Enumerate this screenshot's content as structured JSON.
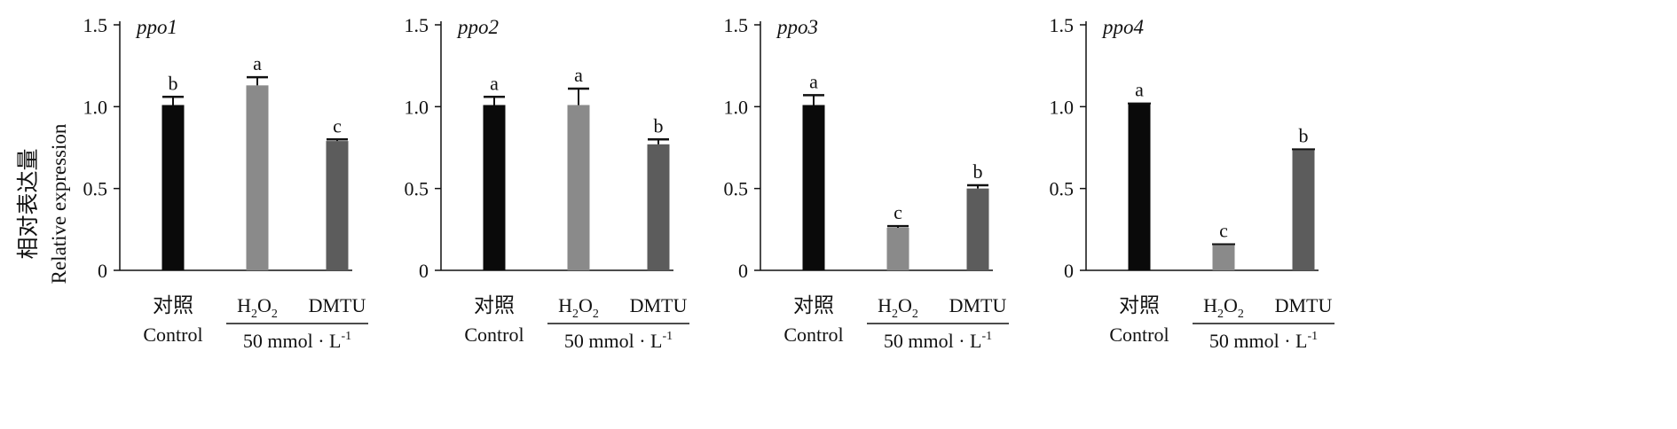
{
  "figure": {
    "ylabel_cn": "相对表达量",
    "ylabel_en": "Relative expression",
    "group_bracket_label": "50 mmol · L",
    "group_bracket_sup": "-1"
  },
  "chart_data": [
    {
      "type": "bar",
      "title": "ppo1",
      "ylim": [
        0,
        1.5
      ],
      "yticks": [
        "0",
        "0.5",
        "1.0",
        "1.5"
      ],
      "categories": [
        {
          "cn": "对照",
          "en": "Control"
        },
        {
          "main": "H",
          "sub1": "2",
          "mid": "O",
          "sub2": "2"
        },
        {
          "main": "DMTU"
        }
      ],
      "values": [
        1.01,
        1.13,
        0.79
      ],
      "errors": [
        0.05,
        0.05,
        0.01
      ],
      "letters": [
        "b",
        "a",
        "c"
      ],
      "colors": [
        "#0a0a0a",
        "#8a8a8a",
        "#5c5c5c"
      ]
    },
    {
      "type": "bar",
      "title": "ppo2",
      "ylim": [
        0,
        1.5
      ],
      "yticks": [
        "0",
        "0.5",
        "1.0",
        "1.5"
      ],
      "categories": [
        {
          "cn": "对照",
          "en": "Control"
        },
        {
          "main": "H",
          "sub1": "2",
          "mid": "O",
          "sub2": "2"
        },
        {
          "main": "DMTU"
        }
      ],
      "values": [
        1.01,
        1.01,
        0.77
      ],
      "errors": [
        0.05,
        0.1,
        0.03
      ],
      "letters": [
        "a",
        "a",
        "b"
      ],
      "colors": [
        "#0a0a0a",
        "#8a8a8a",
        "#5c5c5c"
      ]
    },
    {
      "type": "bar",
      "title": "ppo3",
      "ylim": [
        0,
        1.5
      ],
      "yticks": [
        "0",
        "0.5",
        "1.0",
        "1.5"
      ],
      "categories": [
        {
          "cn": "对照",
          "en": "Control"
        },
        {
          "main": "H",
          "sub1": "2",
          "mid": "O",
          "sub2": "2"
        },
        {
          "main": "DMTU"
        }
      ],
      "values": [
        1.01,
        0.26,
        0.5
      ],
      "errors": [
        0.06,
        0.01,
        0.02
      ],
      "letters": [
        "a",
        "c",
        "b"
      ],
      "colors": [
        "#0a0a0a",
        "#8a8a8a",
        "#5c5c5c"
      ]
    },
    {
      "type": "bar",
      "title": "ppo4",
      "ylim": [
        0,
        1.5
      ],
      "yticks": [
        "0",
        "0.5",
        "1.0",
        "1.5"
      ],
      "categories": [
        {
          "cn": "对照",
          "en": "Control"
        },
        {
          "main": "H",
          "sub1": "2",
          "mid": "O",
          "sub2": "2"
        },
        {
          "main": "DMTU"
        }
      ],
      "values": [
        1.02,
        0.16,
        0.74
      ],
      "errors": [
        0.0,
        0.0,
        0.0
      ],
      "letters": [
        "a",
        "c",
        "b"
      ],
      "colors": [
        "#0a0a0a",
        "#8a8a8a",
        "#5c5c5c"
      ]
    }
  ]
}
